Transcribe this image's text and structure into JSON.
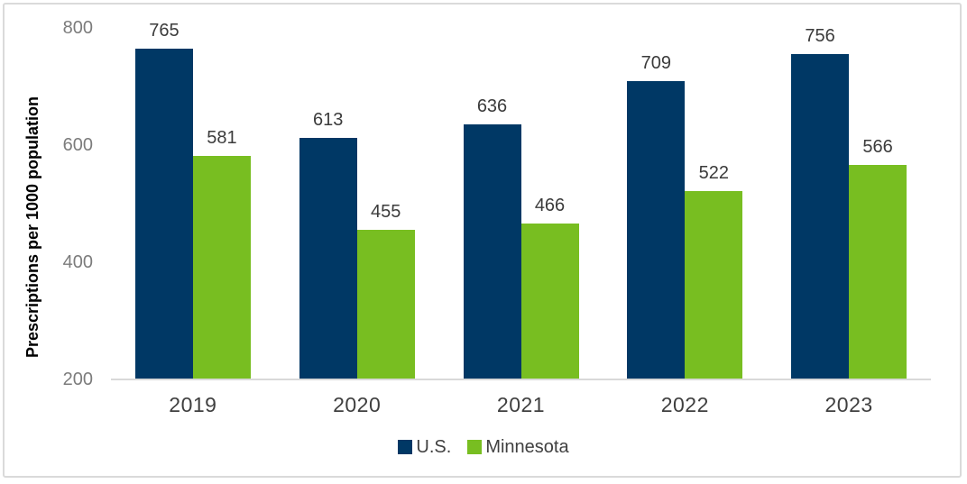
{
  "chart_data": {
    "type": "bar",
    "title": "",
    "xlabel": "",
    "ylabel": "Prescriptions per 1000 population",
    "categories": [
      "2019",
      "2020",
      "2021",
      "2022",
      "2023"
    ],
    "series": [
      {
        "name": "U.S.",
        "color": "#003865",
        "values": [
          765,
          613,
          636,
          709,
          756
        ]
      },
      {
        "name": "Minnesota",
        "color": "#78BE21",
        "values": [
          581,
          455,
          466,
          522,
          566
        ]
      }
    ],
    "ylim": [
      200,
      800
    ],
    "yticks": [
      200,
      400,
      600,
      800
    ],
    "grid": false,
    "data_labels": true,
    "legend_position": "bottom"
  },
  "colors": {
    "background": "#FFFFFF",
    "frame_border": "#DADADA",
    "axis_line": "#D9D9D9",
    "tick_label": "#7C7C7C",
    "data_label": "#3B3B3B",
    "category_label": "#3F3F3F",
    "legend_label": "#404040"
  }
}
